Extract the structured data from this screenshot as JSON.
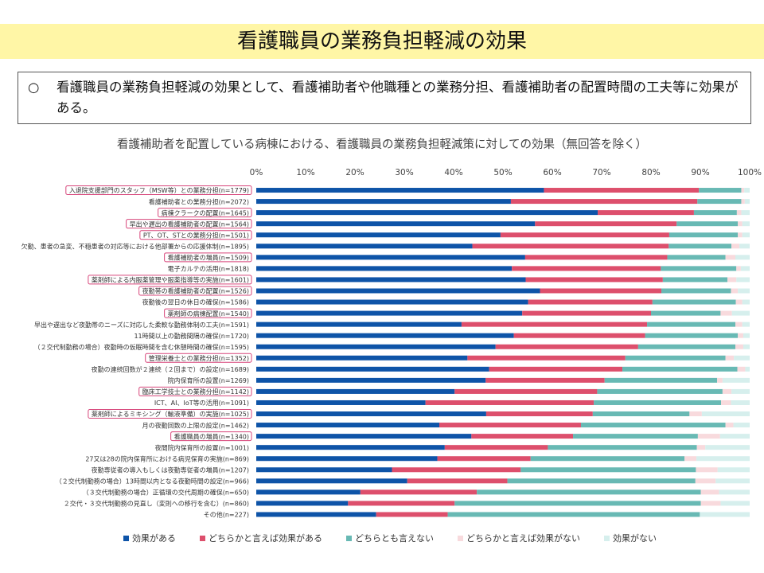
{
  "header": {
    "title": "看護職員の業務負担軽減の効果"
  },
  "summary": {
    "bullet": "○",
    "text": "看護職員の業務負担軽減の効果として、看護補助者や他職種との業務分担、看護補助者の配置時間の工夫等に効果がある。"
  },
  "chart_data": {
    "type": "bar",
    "orientation": "horizontal",
    "stacked": true,
    "title": "看護補助者を配置している病棟における、看護職員の業務負担軽減策に対しての効果（無回答を除く）",
    "xlim": [
      0,
      100
    ],
    "x_ticks": [
      "0%",
      "10%",
      "20%",
      "30%",
      "40%",
      "50%",
      "60%",
      "70%",
      "80%",
      "90%",
      "100%"
    ],
    "legend_position": "bottom",
    "colors": [
      "#0e54a8",
      "#dd4f6c",
      "#68b9b4",
      "#f8dadd",
      "#d6efed"
    ],
    "series_names": [
      "効果がある",
      "どちらかと言えば効果がある",
      "どちらとも言えない",
      "どちらかと言えば効果がない",
      "効果がない"
    ],
    "categories": [
      {
        "label": "入退院支援部門のスタッフ（MSW等）との業務分担(n=1779)",
        "highlight": true,
        "values": [
          58.3,
          31.4,
          8.6,
          0.6,
          1.1
        ]
      },
      {
        "label": "看護補助者との業務分担(n=2072)",
        "highlight": false,
        "values": [
          51.6,
          37.8,
          8.9,
          0.7,
          1.0
        ]
      },
      {
        "label": "病棟クラークの配置(n=1645)",
        "highlight": true,
        "values": [
          69.2,
          19.5,
          8.7,
          0.9,
          1.7
        ]
      },
      {
        "label": "早出や遅出の看護補助者の配置(n=1564)",
        "highlight": true,
        "values": [
          56.5,
          28.7,
          12.4,
          0.9,
          1.5
        ]
      },
      {
        "label": "PT、OT、STとの業務分担(n=1501)",
        "highlight": true,
        "values": [
          49.5,
          34.2,
          13.9,
          0.9,
          1.5
        ]
      },
      {
        "label": "欠勤、患者の急変、不穏患者の対応等における他部署からの応援体制(n=1895)",
        "highlight": false,
        "values": [
          43.8,
          39.8,
          12.7,
          1.6,
          2.1
        ]
      },
      {
        "label": "看護補助者の増員(n=1509)",
        "highlight": true,
        "values": [
          54.5,
          28.8,
          11.8,
          2.0,
          2.9
        ]
      },
      {
        "label": "電子カルテの活用(n=1818)",
        "highlight": false,
        "values": [
          51.8,
          30.2,
          15.3,
          0.9,
          1.8
        ]
      },
      {
        "label": "薬剤師による内服薬管理や服薬指導等の実施(n=1601)",
        "highlight": true,
        "values": [
          54.6,
          27.8,
          13.1,
          1.8,
          2.7
        ]
      },
      {
        "label": "夜勤帯の看護補助者の配置(n=1526)",
        "highlight": true,
        "values": [
          57.5,
          24.6,
          14.1,
          1.4,
          2.4
        ]
      },
      {
        "label": "夜勤後の翌日の休日の確保(n=1586)",
        "highlight": false,
        "values": [
          55.1,
          25.2,
          16.9,
          1.3,
          1.5
        ]
      },
      {
        "label": "薬剤師の病棟配置(n=1540)",
        "highlight": true,
        "values": [
          53.9,
          26.1,
          14.1,
          2.3,
          3.6
        ]
      },
      {
        "label": "早出や遅出など夜勤帯のニーズに対応した柔軟な勤務体制の工夫(n=1591)",
        "highlight": false,
        "values": [
          41.6,
          37.6,
          17.9,
          1.4,
          1.5
        ]
      },
      {
        "label": "11時間以上の勤務間隔の確保(n=1720)",
        "highlight": false,
        "values": [
          52.2,
          26.6,
          18.8,
          1.1,
          1.3
        ]
      },
      {
        "label": "（２交代制勤務の場合）夜勤時の仮眠時間を含む休憩時間の確保(n=1595)",
        "highlight": false,
        "values": [
          48.5,
          28.9,
          19.7,
          1.6,
          1.3
        ]
      },
      {
        "label": "管理栄養士との業務分担(n=1352)",
        "highlight": true,
        "values": [
          42.8,
          32.0,
          20.3,
          1.7,
          3.2
        ]
      },
      {
        "label": "夜勤の連続回数が２連続（２回まで）の設定(n=1689)",
        "highlight": false,
        "values": [
          47.2,
          27.0,
          23.3,
          1.6,
          0.9
        ]
      },
      {
        "label": "院内保育所の設置(n=1269)",
        "highlight": false,
        "values": [
          46.5,
          24.1,
          22.8,
          1.1,
          5.5
        ]
      },
      {
        "label": "臨床工学技士との業務分担(n=1142)",
        "highlight": true,
        "values": [
          40.2,
          28.9,
          25.4,
          1.8,
          3.7
        ]
      },
      {
        "label": "ICT、AI、IoT等の活用(n=1091)",
        "highlight": false,
        "values": [
          34.3,
          34.1,
          25.8,
          2.0,
          3.8
        ]
      },
      {
        "label": "薬剤師によるミキシング（輸液準備）の実施(n=1025)",
        "highlight": true,
        "values": [
          46.6,
          21.6,
          19.6,
          2.5,
          9.7
        ]
      },
      {
        "label": "月の夜勤回数の上限の設定(n=1462)",
        "highlight": false,
        "values": [
          37.1,
          28.7,
          29.3,
          1.6,
          3.3
        ]
      },
      {
        "label": "看護職員の増員(n=1340)",
        "highlight": true,
        "values": [
          43.6,
          20.6,
          25.3,
          4.5,
          6.0
        ]
      },
      {
        "label": "夜間院内保育所の設置(n=1001)",
        "highlight": false,
        "values": [
          38.2,
          20.9,
          30.2,
          1.7,
          9.0
        ]
      },
      {
        "label": "27又は28の院内保育所における病児保育の実施(n=869)",
        "highlight": false,
        "values": [
          36.7,
          18.9,
          31.2,
          2.4,
          10.8
        ]
      },
      {
        "label": "夜勤専従者の導入もしくは夜勤専従者の増員(n=1207)",
        "highlight": false,
        "values": [
          27.5,
          26.1,
          35.5,
          4.4,
          6.5
        ]
      },
      {
        "label": "（２交代制勤務の場合）13時間以内となる夜勤時間の設定(n=966)",
        "highlight": false,
        "values": [
          30.6,
          20.3,
          38.1,
          4.1,
          6.9
        ]
      },
      {
        "label": "（３交代制勤務の場合）正循環の交代周期の確保(n=650)",
        "highlight": false,
        "values": [
          21.1,
          23.6,
          45.4,
          3.7,
          6.2
        ]
      },
      {
        "label": "２交代・３交代制勤務の見直し（変則への移行を含む）(n=860)",
        "highlight": false,
        "values": [
          18.6,
          21.6,
          49.9,
          4.0,
          5.9
        ]
      },
      {
        "label": "その他(n=227)",
        "highlight": false,
        "values": [
          24.3,
          14.5,
          51.1,
          0.0,
          10.1
        ]
      }
    ]
  }
}
